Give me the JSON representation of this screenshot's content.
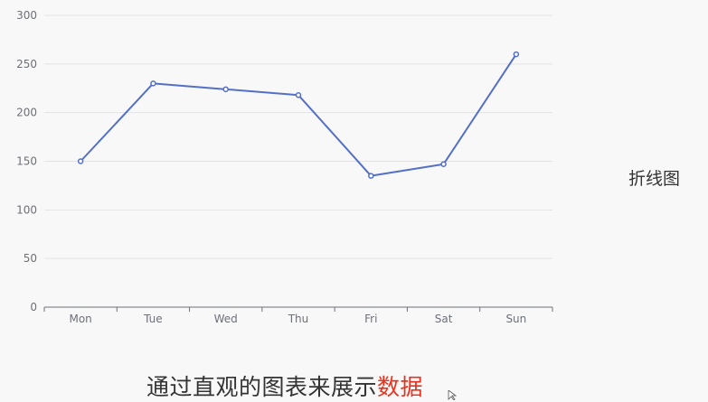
{
  "chart_data": {
    "type": "line",
    "categories": [
      "Mon",
      "Tue",
      "Wed",
      "Thu",
      "Fri",
      "Sat",
      "Sun"
    ],
    "series": [
      {
        "values": [
          150,
          230,
          224,
          218,
          135,
          147,
          260
        ]
      }
    ],
    "ylim": [
      0,
      300
    ],
    "yticks": [
      0,
      50,
      100,
      150,
      200,
      250,
      300
    ],
    "grid": true,
    "line_color": "#5470c6"
  },
  "side_label": "折线图",
  "caption": {
    "normal": "通过直观的图表来展示",
    "highlight": "数据"
  },
  "colors": {
    "highlight": "#e8321e"
  }
}
